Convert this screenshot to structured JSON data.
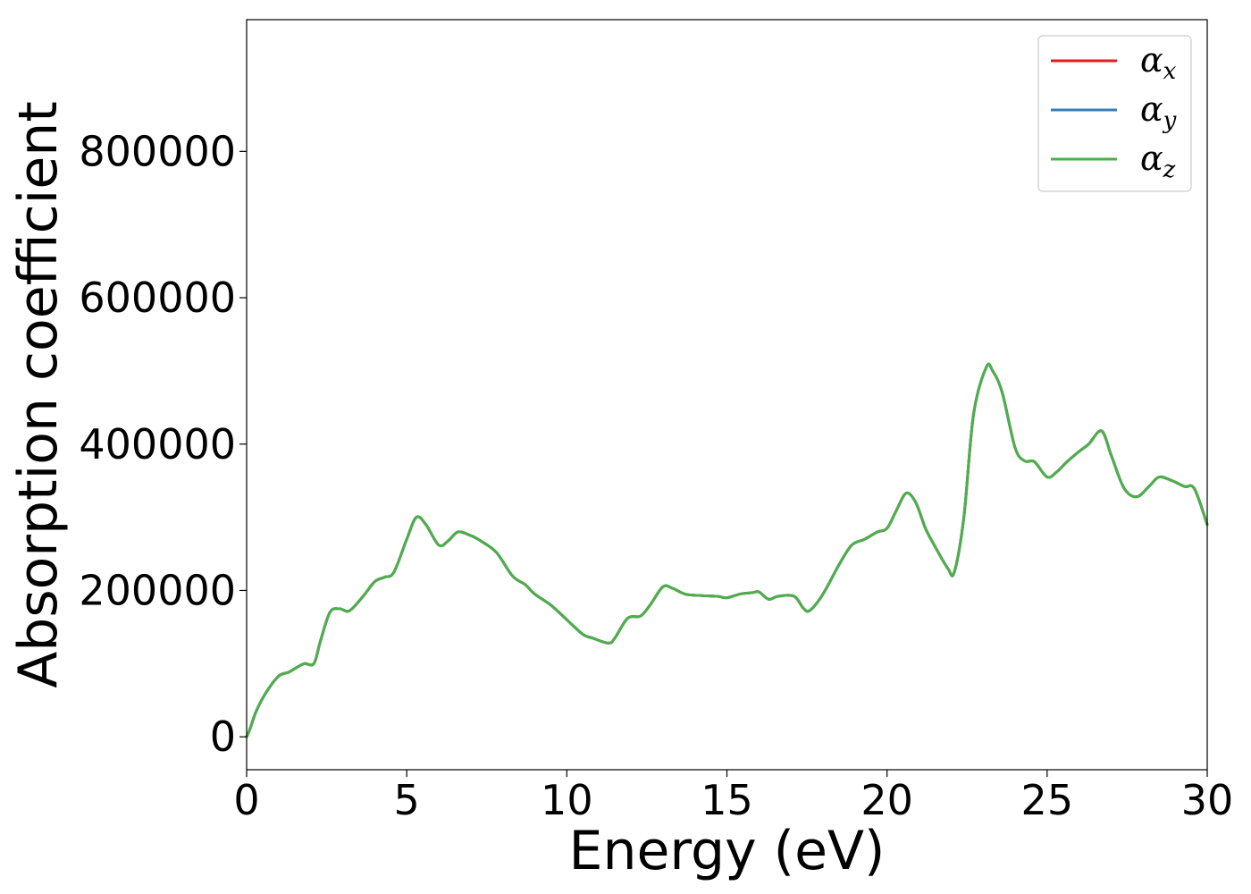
{
  "chart_data": {
    "type": "line",
    "title": "",
    "xlabel": "Energy (eV)",
    "ylabel": "Absorption coefficient",
    "xlim": [
      0,
      30
    ],
    "ylim": [
      -45000,
      980000
    ],
    "xticks": [
      0,
      5,
      10,
      15,
      20,
      25,
      30
    ],
    "xtick_labels": [
      "0",
      "5",
      "10",
      "15",
      "20",
      "25",
      "30"
    ],
    "yticks": [
      0,
      200000,
      400000,
      600000,
      800000
    ],
    "ytick_labels": [
      "0",
      "200000",
      "400000",
      "600000",
      "800000"
    ],
    "grid": false,
    "legend": "top-right",
    "x": [
      0,
      0.1,
      0.3,
      0.6,
      1.0,
      1.3,
      1.5,
      1.8,
      2.1,
      2.3,
      2.6,
      2.9,
      3.2,
      3.6,
      4.0,
      4.3,
      4.6,
      5.0,
      5.3,
      5.6,
      6.0,
      6.3,
      6.6,
      7.0,
      7.3,
      7.8,
      8.3,
      8.7,
      9.0,
      9.5,
      10.0,
      10.5,
      10.8,
      11.3,
      11.5,
      11.9,
      12.3,
      12.6,
      13.0,
      13.3,
      13.7,
      14.2,
      14.7,
      15.0,
      15.4,
      15.8,
      16.0,
      16.3,
      16.6,
      17.1,
      17.4,
      17.6,
      18.0,
      18.5,
      18.9,
      19.3,
      19.7,
      20.0,
      20.3,
      20.6,
      20.9,
      21.2,
      21.5,
      21.9,
      22.1,
      22.4,
      22.7,
      23.1,
      23.3,
      23.6,
      24.0,
      24.3,
      24.6,
      25.0,
      25.3,
      25.6,
      26.0,
      26.3,
      26.7,
      27.0,
      27.4,
      27.8,
      28.2,
      28.5,
      28.9,
      29.3,
      29.6,
      30.0
    ],
    "series": [
      {
        "name": "x",
        "color": "#e41a1c",
        "values": [
          0,
          10000,
          35000,
          60000,
          83000,
          88000,
          93000,
          100000,
          100000,
          130000,
          170000,
          175000,
          172000,
          190000,
          212000,
          218000,
          225000,
          270000,
          300000,
          290000,
          262000,
          268000,
          280000,
          275000,
          268000,
          252000,
          220000,
          208000,
          195000,
          180000,
          160000,
          140000,
          135000,
          128000,
          135000,
          162000,
          165000,
          180000,
          205000,
          203000,
          195000,
          193000,
          192000,
          190000,
          195000,
          197000,
          198000,
          188000,
          192000,
          192000,
          175000,
          173000,
          195000,
          235000,
          262000,
          270000,
          280000,
          285000,
          310000,
          333000,
          320000,
          285000,
          260000,
          230000,
          225000,
          300000,
          440000,
          505000,
          500000,
          470000,
          395000,
          377000,
          376000,
          355000,
          362000,
          375000,
          390000,
          400000,
          418000,
          385000,
          340000,
          328000,
          343000,
          355000,
          350000,
          342000,
          339000,
          290000
        ]
      },
      {
        "name": "y",
        "color": "#377eb8",
        "values": [
          0,
          10000,
          35000,
          60000,
          83000,
          88000,
          93000,
          100000,
          100000,
          130000,
          170000,
          175000,
          172000,
          190000,
          212000,
          218000,
          225000,
          270000,
          300000,
          290000,
          262000,
          268000,
          280000,
          275000,
          268000,
          252000,
          220000,
          208000,
          195000,
          180000,
          160000,
          140000,
          135000,
          128000,
          135000,
          162000,
          165000,
          180000,
          205000,
          203000,
          195000,
          193000,
          192000,
          190000,
          195000,
          197000,
          198000,
          188000,
          192000,
          192000,
          175000,
          173000,
          195000,
          235000,
          262000,
          270000,
          280000,
          285000,
          310000,
          333000,
          320000,
          285000,
          260000,
          230000,
          225000,
          300000,
          440000,
          505000,
          500000,
          470000,
          395000,
          377000,
          376000,
          355000,
          362000,
          375000,
          390000,
          400000,
          418000,
          385000,
          340000,
          328000,
          343000,
          355000,
          350000,
          342000,
          339000,
          290000
        ]
      },
      {
        "name": "z",
        "color": "#4daf4a",
        "values": [
          0,
          10000,
          35000,
          60000,
          83000,
          88000,
          93000,
          100000,
          100000,
          130000,
          170000,
          175000,
          172000,
          190000,
          212000,
          218000,
          225000,
          270000,
          300000,
          290000,
          262000,
          268000,
          280000,
          275000,
          268000,
          252000,
          220000,
          208000,
          195000,
          180000,
          160000,
          140000,
          135000,
          128000,
          135000,
          162000,
          165000,
          180000,
          205000,
          203000,
          195000,
          193000,
          192000,
          190000,
          195000,
          197000,
          198000,
          188000,
          192000,
          192000,
          175000,
          173000,
          195000,
          235000,
          262000,
          270000,
          280000,
          285000,
          310000,
          333000,
          320000,
          285000,
          260000,
          230000,
          225000,
          300000,
          440000,
          505000,
          500000,
          470000,
          395000,
          377000,
          376000,
          355000,
          362000,
          375000,
          390000,
          400000,
          418000,
          385000,
          340000,
          328000,
          343000,
          355000,
          350000,
          342000,
          339000,
          290000
        ]
      }
    ],
    "legend_symbol": "α"
  }
}
